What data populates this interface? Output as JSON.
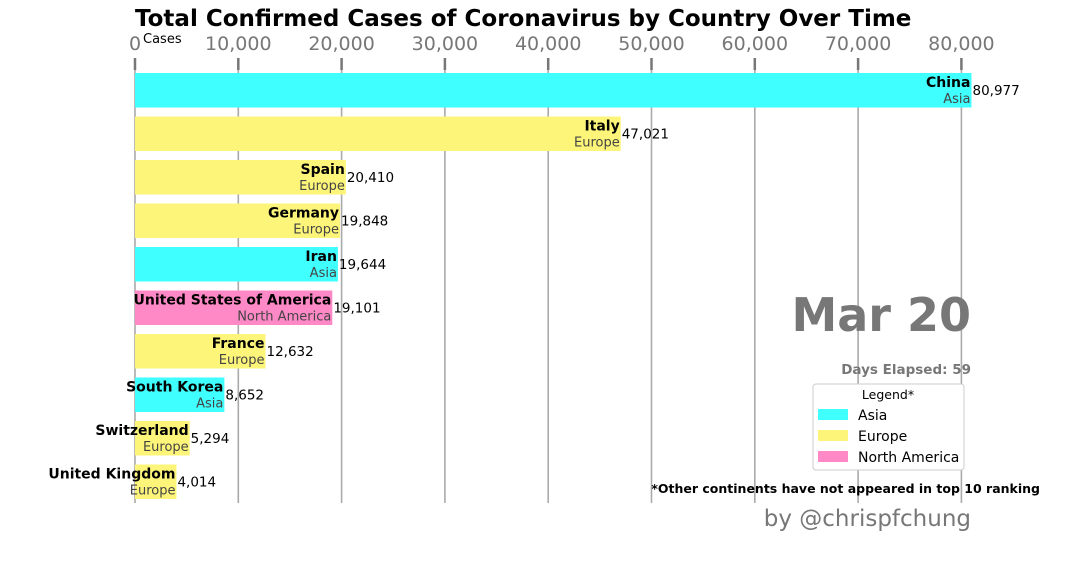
{
  "chart_data": {
    "type": "bar",
    "orientation": "horizontal",
    "title": "Total Confirmed Cases of Coronavirus by Country Over Time",
    "xlabel": "Cases",
    "xlim": [
      0,
      81000
    ],
    "xticks": [
      0,
      10000,
      20000,
      30000,
      40000,
      50000,
      60000,
      70000,
      80000
    ],
    "xtick_labels": [
      "0",
      "10,000",
      "20,000",
      "30,000",
      "40,000",
      "50,000",
      "60,000",
      "70,000",
      "80,000"
    ],
    "grid": "vertical",
    "bars": [
      {
        "country": "China",
        "continent": "Asia",
        "value": 80977,
        "label": "80,977"
      },
      {
        "country": "Italy",
        "continent": "Europe",
        "value": 47021,
        "label": "47,021"
      },
      {
        "country": "Spain",
        "continent": "Europe",
        "value": 20410,
        "label": "20,410"
      },
      {
        "country": "Germany",
        "continent": "Europe",
        "value": 19848,
        "label": "19,848"
      },
      {
        "country": "Iran",
        "continent": "Asia",
        "value": 19644,
        "label": "19,644"
      },
      {
        "country": "United States of America",
        "continent": "North America",
        "value": 19101,
        "label": "19,101"
      },
      {
        "country": "France",
        "continent": "Europe",
        "value": 12632,
        "label": "12,632"
      },
      {
        "country": "South Korea",
        "continent": "Asia",
        "value": 8652,
        "label": "8,652"
      },
      {
        "country": "Switzerland",
        "continent": "Europe",
        "value": 5294,
        "label": "5,294"
      },
      {
        "country": "United Kingdom",
        "continent": "Europe",
        "value": 4014,
        "label": "4,014"
      }
    ],
    "colors": {
      "Asia": "#40ffff",
      "Europe": "#fdf579",
      "North America": "#ff88c6"
    },
    "date": "Mar 20",
    "days_elapsed": "Days Elapsed: 59",
    "legend": {
      "title": "Legend*",
      "placement": "right",
      "items": [
        "Asia",
        "Europe",
        "North America"
      ]
    },
    "footnote": "*Other continents have not appeared in top 10 ranking",
    "credit": "by @chrispfchung"
  }
}
